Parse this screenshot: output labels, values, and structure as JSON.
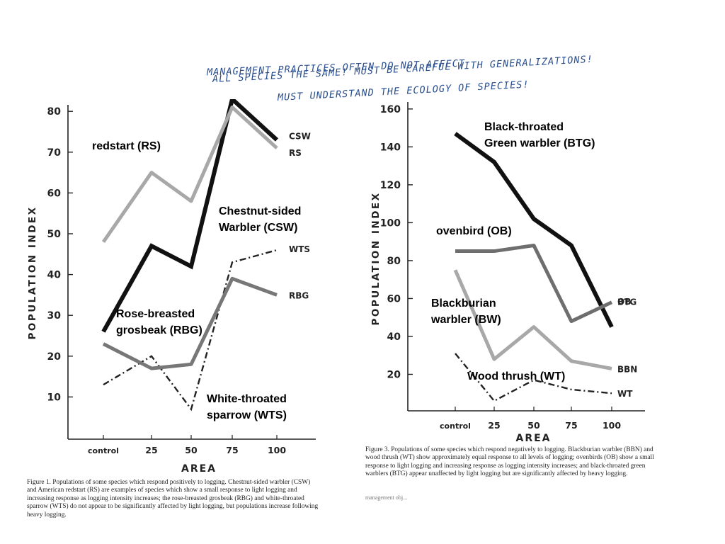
{
  "notes": [
    "MANAGEMENT PRACTICES OFTEN DO NOT AFFECT",
    "ALL SPECIES THE SAME! MUST BE CAREFUL WITH GENERALIZATIONS!",
    "MUST UNDERSTAND THE ECOLOGY OF SPECIES!"
  ],
  "annotations": {
    "left": {
      "rs": "redstart (RS)",
      "csw": "Chestnut-sided\nWarbler (CSW)",
      "rbg": "Rose-breasted\ngrosbeak (RBG)",
      "wts": "White-throated\nsparrow (WTS)"
    },
    "right": {
      "btg": "Black-throated\nGreen warbler (BTG)",
      "ob": "ovenbird (OB)",
      "bw": "Blackburian\nwarbler (BW)",
      "wt": "Wood thrush (WT)"
    }
  },
  "captions": {
    "left": "Figure 1.   Populations of some species which respond positively to logging. Chestnut-sided warbler (CSW) and American redstart (RS) are examples of species which show a small response to light logging and increasing response as logging intensity increases; the rose-breasted grosbeak (RBG) and white-throated sparrow (WTS) do not appear to be significantly affected by light logging, but populations increase following heavy logging.",
    "right": "Figure 3.   Populations of some species which respond negatively to logging. Blackburian warbler (BBN) and wood thrush (WT) show approximately equal response to all levels of logging; ovenbirds (OB) show a small response to light logging and increasing response as logging intensity increases; and black-throated green warblers (BTG) appear unaffected by light logging but are significantly affected by heavy logging.",
    "right_faint": "management obj..."
  },
  "chart_data": [
    {
      "type": "line",
      "xlabel": "AREA",
      "ylabel": "POPULATION INDEX",
      "categories": [
        "control",
        "25",
        "50",
        "75",
        "100"
      ],
      "yticks": [
        10,
        20,
        30,
        40,
        50,
        60,
        70,
        80
      ],
      "ylim": [
        0,
        83
      ],
      "grid": false,
      "series": [
        {
          "name": "CSW",
          "values": [
            26,
            47,
            42,
            83,
            73
          ],
          "style": "thick-solid",
          "color": "#111111"
        },
        {
          "name": "RS",
          "values": [
            48,
            65,
            58,
            81,
            71
          ],
          "style": "thick-light",
          "color": "#a8a8a8"
        },
        {
          "name": "WTS",
          "values": [
            13,
            20,
            7,
            43,
            46
          ],
          "style": "dash-dot",
          "color": "#222222"
        },
        {
          "name": "RBG",
          "values": [
            23,
            17,
            18,
            39,
            35
          ],
          "style": "thick-gray",
          "color": "#777777"
        }
      ]
    },
    {
      "type": "line",
      "xlabel": "AREA",
      "ylabel": "POPULATION INDEX",
      "categories": [
        "control",
        "25",
        "50",
        "75",
        "100"
      ],
      "yticks": [
        20,
        40,
        60,
        80,
        100,
        120,
        140,
        160
      ],
      "ylim": [
        0,
        160
      ],
      "grid": false,
      "series": [
        {
          "name": "BTG",
          "values": [
            147,
            132,
            102,
            88,
            45
          ],
          "style": "thick-solid",
          "color": "#111111"
        },
        {
          "name": "OB",
          "values": [
            85,
            85,
            88,
            48,
            58
          ],
          "style": "thick-gray",
          "color": "#6e6e6e"
        },
        {
          "name": "BBN",
          "values": [
            75,
            28,
            45,
            27,
            23
          ],
          "style": "thick-light",
          "color": "#a8a8a8"
        },
        {
          "name": "WT",
          "values": [
            31,
            6,
            17,
            12,
            10
          ],
          "style": "dash-dot",
          "color": "#222222"
        }
      ]
    }
  ]
}
